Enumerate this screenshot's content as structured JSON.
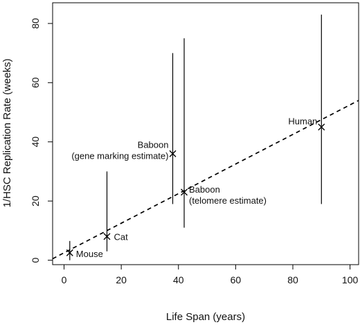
{
  "chart_data": {
    "type": "scatter",
    "xlabel": "Life Span (years)",
    "ylabel": "1/HSC Replication Rate (weeks)",
    "xlim": [
      -4,
      103
    ],
    "ylim": [
      -1.5,
      87
    ],
    "x_ticks": [
      0,
      20,
      40,
      60,
      80,
      100
    ],
    "y_ticks": [
      0,
      20,
      40,
      60,
      80
    ],
    "x_tick_labels": [
      "0",
      "20",
      "40",
      "60",
      "80",
      "100"
    ],
    "y_tick_labels": [
      "0",
      "20",
      "40",
      "60",
      "80"
    ],
    "grid": false,
    "marker": "x",
    "points": [
      {
        "label": "Mouse",
        "x": 2,
        "y": 2.5,
        "y_low": 0,
        "y_high": 6.5
      },
      {
        "label": "Cat",
        "x": 15,
        "y": 8,
        "y_low": 3,
        "y_high": 30
      },
      {
        "label": "Baboon\n(gene marking estimate)",
        "x": 38,
        "y": 36,
        "y_low": 19,
        "y_high": 70
      },
      {
        "label": "Baboon\n(telomere estimate)",
        "x": 42,
        "y": 23,
        "y_low": 11,
        "y_high": 75
      },
      {
        "label": "Human",
        "x": 90,
        "y": 45,
        "y_low": 19,
        "y_high": 83
      }
    ],
    "fit_line": {
      "style": "dashed",
      "x": [
        -4,
        103
      ],
      "y": [
        0.5,
        54
      ]
    }
  }
}
